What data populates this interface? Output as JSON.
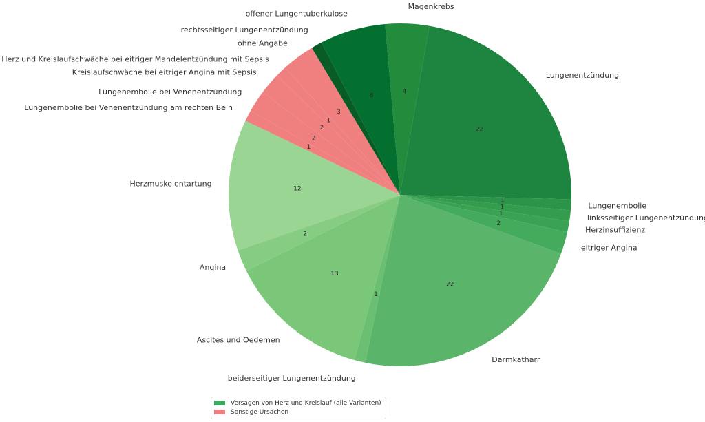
{
  "chart_data": {
    "type": "pie",
    "start_angle_deg": 95,
    "direction": "clockwise",
    "legend_position": "bottom-center",
    "legend": [
      {
        "label": "Versagen von Herz und Kreislauf (alle Varianten)",
        "color": "#3daa60"
      },
      {
        "label": "Sonstige Ursachen",
        "color": "#f08080"
      }
    ],
    "slices": [
      {
        "label": "Magenkrebs",
        "value": 4,
        "color": "#228b3c",
        "show_value": true
      },
      {
        "label": "Lungenentzündung",
        "value": 22,
        "color": "#1e8540",
        "show_value": true
      },
      {
        "label": "Lungenembolie",
        "value": 1,
        "color": "#2b9448",
        "show_value": true
      },
      {
        "label": "linksseitiger Lungenentzündung",
        "value": 1,
        "color": "#339c4d",
        "show_value": true
      },
      {
        "label": "Herzinsuffizienz",
        "value": 1,
        "color": "#3aa353",
        "show_value": true
      },
      {
        "label": "eitriger Angina",
        "value": 2,
        "color": "#45ab5c",
        "show_value": true
      },
      {
        "label": "Darmkatharr",
        "value": 22,
        "color": "#5ab46a",
        "show_value": true
      },
      {
        "label": "beiderseitiger Lungenentzündung",
        "value": 1,
        "color": "#6abf72",
        "show_value": true
      },
      {
        "label": "Ascites und Oedemen",
        "value": 13,
        "color": "#7bc77a",
        "show_value": true
      },
      {
        "label": "Angina",
        "value": 2,
        "color": "#87cc83",
        "show_value": true
      },
      {
        "label": "Herzmuskelentartung",
        "value": 12,
        "color": "#9ad594",
        "show_value": true
      },
      {
        "label": "Lungenembolie bei Venenentzündung am rechten Bein",
        "value": 1,
        "color": "#f08080",
        "show_value": true
      },
      {
        "label": "Lungenembolie bei Venenentzündung",
        "value": 2,
        "color": "#f08080",
        "show_value": true
      },
      {
        "label": "Kreislaufschwäche bei eitriger Angina mit Sepsis",
        "value": 2,
        "color": "#f08080",
        "show_value": true
      },
      {
        "label": "Herz und Kreislaufschwäche bei eitriger Mandelentzündung mit Sepsis",
        "value": 1,
        "color": "#f08080",
        "show_value": true
      },
      {
        "label": "ohne Angabe",
        "value": 3,
        "color": "#f08080",
        "show_value": true
      },
      {
        "label": "rechtsseitiger Lungenentzündung",
        "value": 1,
        "color": "#0a5c26",
        "show_value": false
      },
      {
        "label": "offener Lungentuberkulose",
        "value": 6,
        "color": "#037030",
        "show_value": true
      }
    ]
  }
}
